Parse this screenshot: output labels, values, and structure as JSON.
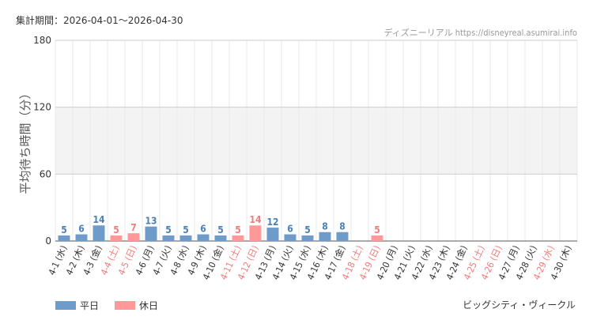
{
  "header": {
    "period_label": "集計期間",
    "period_separator": "：",
    "period_start": "2026-04-01",
    "period_tilde": "～",
    "period_end": "2026-04-30",
    "source_name": "ディズニーリアル",
    "source_url": "https://disneyreal.asumirai.info"
  },
  "legend": {
    "weekday_label": "平日",
    "holiday_label": "休日",
    "weekday_color": "#6e9bc9",
    "holiday_color": "#ff9999"
  },
  "facility": "ビッグシティ・ヴィークル",
  "chart_data": {
    "type": "bar",
    "ylabel": "平均待ち時間（分）",
    "ylim": [
      0,
      180
    ],
    "yticks": [
      0,
      60,
      120,
      180
    ],
    "shaded_band": [
      60,
      120
    ],
    "grid": true,
    "legend_position": "bottom-left",
    "colors": {
      "weekday": "#6e9bc9",
      "holiday": "#ff9999",
      "weekday_text": "#4a7fb8",
      "holiday_text": "#f07b7b"
    },
    "categories": [
      "4-1 (水)",
      "4-2 (木)",
      "4-3 (金)",
      "4-4 (土)",
      "4-5 (日)",
      "4-6 (月)",
      "4-7 (火)",
      "4-8 (水)",
      "4-9 (木)",
      "4-10 (金)",
      "4-11 (土)",
      "4-12 (日)",
      "4-13 (月)",
      "4-14 (火)",
      "4-15 (水)",
      "4-16 (木)",
      "4-17 (金)",
      "4-18 (土)",
      "4-19 (日)",
      "4-20 (月)",
      "4-21 (火)",
      "4-22 (水)",
      "4-23 (木)",
      "4-24 (金)",
      "4-25 (土)",
      "4-26 (日)",
      "4-27 (月)",
      "4-28 (火)",
      "4-29 (水)",
      "4-30 (木)"
    ],
    "day_types": [
      "weekday",
      "weekday",
      "weekday",
      "holiday",
      "holiday",
      "weekday",
      "weekday",
      "weekday",
      "weekday",
      "weekday",
      "holiday",
      "holiday",
      "weekday",
      "weekday",
      "weekday",
      "weekday",
      "weekday",
      "holiday",
      "holiday",
      "weekday",
      "weekday",
      "weekday",
      "weekday",
      "weekday",
      "holiday",
      "holiday",
      "weekday",
      "weekday",
      "holiday",
      "weekday"
    ],
    "values": [
      5,
      6,
      14,
      5,
      7,
      13,
      5,
      5,
      6,
      5,
      5,
      14,
      12,
      6,
      5,
      8,
      8,
      null,
      5,
      null,
      null,
      null,
      null,
      null,
      null,
      null,
      null,
      null,
      null,
      null
    ]
  }
}
